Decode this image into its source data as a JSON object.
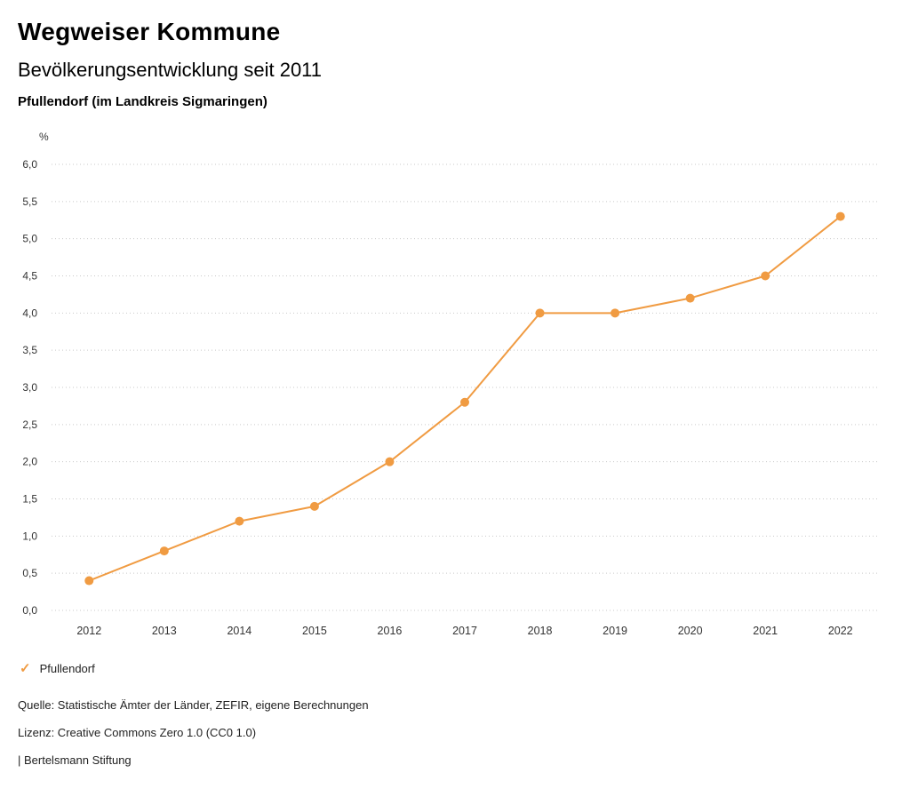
{
  "header": {
    "title": "Wegweiser Kommune",
    "subtitle": "Bevölkerungsentwicklung seit 2011",
    "location": "Pfullendorf (im Landkreis Sigmaringen)"
  },
  "chart_data": {
    "type": "line",
    "title": "Wegweiser Kommune",
    "subtitle": "Bevölkerungsentwicklung seit 2011",
    "annotation": "Pfullendorf (im Landkreis Sigmaringen)",
    "xlabel": "",
    "ylabel": "%",
    "categories": [
      "2012",
      "2013",
      "2014",
      "2015",
      "2016",
      "2017",
      "2018",
      "2019",
      "2020",
      "2021",
      "2022"
    ],
    "series": [
      {
        "name": "Pfullendorf",
        "color": "#F09B42",
        "values": [
          0.4,
          0.8,
          1.2,
          1.4,
          2.0,
          2.8,
          4.0,
          4.0,
          4.2,
          4.5,
          5.3
        ]
      }
    ],
    "ylim": [
      0.0,
      6.0
    ],
    "ytick_step": 0.5,
    "ytick_labels": [
      "0,0",
      "0,5",
      "1,0",
      "1,5",
      "2,0",
      "2,5",
      "3,0",
      "3,5",
      "4,0",
      "4,5",
      "5,0",
      "5,5",
      "6,0"
    ],
    "grid": "horizontal-dotted",
    "grid_color": "#c9c9c9",
    "legend_position": "bottom-left"
  },
  "legend": {
    "items": [
      {
        "label": "Pfullendorf",
        "color": "#F09B42",
        "marker": "check"
      }
    ]
  },
  "footer": {
    "source": "Quelle: Statistische Ämter der Länder, ZEFIR, eigene Berechnungen",
    "license": "Lizenz: Creative Commons Zero 1.0 (CC0 1.0)",
    "attribution": "| Bertelsmann Stiftung"
  }
}
